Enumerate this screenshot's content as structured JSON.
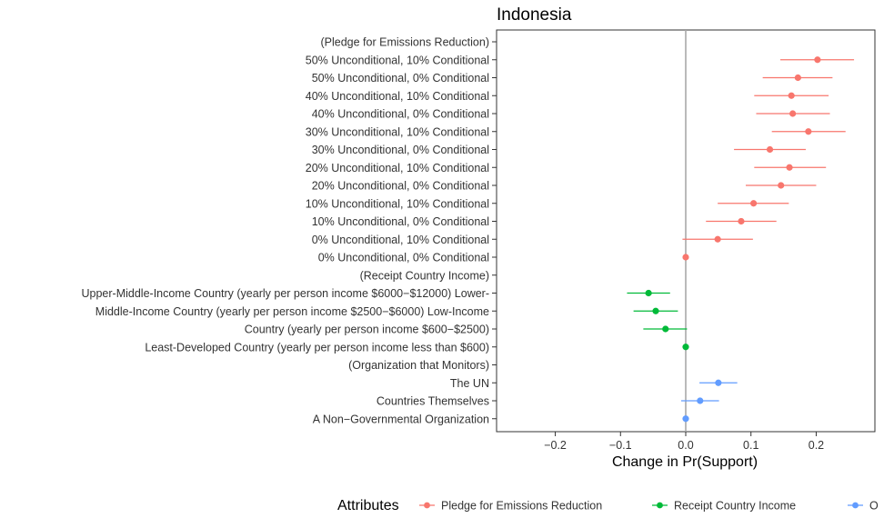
{
  "chart_data": {
    "type": "scatter",
    "title": "Indonesia",
    "xlabel": "Change in Pr(Support)",
    "ylabel": "",
    "xlim": [
      -0.29,
      0.29
    ],
    "xticks": [
      -0.2,
      -0.1,
      0.0,
      0.1,
      0.2
    ],
    "xtick_labels": [
      "−0.2",
      "−0.1",
      "0.0",
      "0.1",
      "0.2"
    ],
    "grid": false,
    "reference_line_x": 0,
    "legend": {
      "title": "Attributes",
      "position": "bottom",
      "entries": [
        {
          "label": "Pledge for Emissions Reduction",
          "color": "#F8766D"
        },
        {
          "label": "Receipt Country Income",
          "color": "#00BA38"
        },
        {
          "label": "O",
          "color": "#619CFF"
        }
      ]
    },
    "rows": [
      {
        "label": "(Pledge for Emissions Reduction)",
        "estimate": null,
        "lower": null,
        "upper": null,
        "group": 0
      },
      {
        "label": "50% Unconditional, 10% Conditional",
        "estimate": 0.202,
        "lower": 0.145,
        "upper": 0.258,
        "group": 0
      },
      {
        "label": "50% Unconditional, 0% Conditional",
        "estimate": 0.172,
        "lower": 0.118,
        "upper": 0.225,
        "group": 0
      },
      {
        "label": "40% Unconditional, 10% Conditional",
        "estimate": 0.162,
        "lower": 0.105,
        "upper": 0.219,
        "group": 0
      },
      {
        "label": "40% Unconditional, 0% Conditional",
        "estimate": 0.164,
        "lower": 0.108,
        "upper": 0.221,
        "group": 0
      },
      {
        "label": "30% Unconditional, 10% Conditional",
        "estimate": 0.188,
        "lower": 0.132,
        "upper": 0.245,
        "group": 0
      },
      {
        "label": "30% Unconditional, 0% Conditional",
        "estimate": 0.129,
        "lower": 0.074,
        "upper": 0.184,
        "group": 0
      },
      {
        "label": "20% Unconditional, 10% Conditional",
        "estimate": 0.159,
        "lower": 0.105,
        "upper": 0.215,
        "group": 0
      },
      {
        "label": "20% Unconditional, 0% Conditional",
        "estimate": 0.146,
        "lower": 0.092,
        "upper": 0.2,
        "group": 0
      },
      {
        "label": "10% Unconditional, 10% Conditional",
        "estimate": 0.104,
        "lower": 0.049,
        "upper": 0.158,
        "group": 0
      },
      {
        "label": "10% Unconditional, 0% Conditional",
        "estimate": 0.085,
        "lower": 0.031,
        "upper": 0.139,
        "group": 0
      },
      {
        "label": "0% Unconditional, 10% Conditional",
        "estimate": 0.049,
        "lower": -0.005,
        "upper": 0.103,
        "group": 0
      },
      {
        "label": "0% Unconditional, 0% Conditional",
        "estimate": 0.0,
        "lower": 0.0,
        "upper": 0.0,
        "group": 0
      },
      {
        "label": "(Receipt Country Income)",
        "estimate": null,
        "lower": null,
        "upper": null,
        "group": 1
      },
      {
        "label": "Upper-Middle-Income Country (yearly per person income $6000−$12000)  Lower-",
        "estimate": -0.057,
        "lower": -0.09,
        "upper": -0.024,
        "group": 1
      },
      {
        "label": "Middle-Income Country (yearly per person income $2500−$6000)  Low-Income",
        "estimate": -0.046,
        "lower": -0.08,
        "upper": -0.012,
        "group": 1
      },
      {
        "label": "Country (yearly per person income $600−$2500)",
        "estimate": -0.031,
        "lower": -0.065,
        "upper": 0.002,
        "group": 1
      },
      {
        "label": "Least-Developed Country (yearly per person income less than $600)",
        "estimate": 0.0,
        "lower": 0.0,
        "upper": 0.0,
        "group": 1
      },
      {
        "label": "(Organization that Monitors)",
        "estimate": null,
        "lower": null,
        "upper": null,
        "group": 2
      },
      {
        "label": "The UN",
        "estimate": 0.05,
        "lower": 0.021,
        "upper": 0.079,
        "group": 2
      },
      {
        "label": "Countries Themselves",
        "estimate": 0.022,
        "lower": -0.007,
        "upper": 0.051,
        "group": 2
      },
      {
        "label": "A Non−Governmental Organization",
        "estimate": 0.0,
        "lower": 0.0,
        "upper": 0.0,
        "group": 2
      }
    ]
  }
}
